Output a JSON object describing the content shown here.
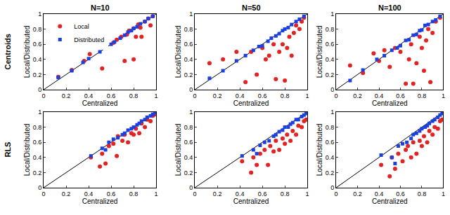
{
  "chart_data": [
    {
      "type": "scatter",
      "title": "N=10",
      "annotation": "Centroids",
      "xlabel": "Centralized",
      "ylabel": "Local/Distributed",
      "xlim": [
        0,
        1
      ],
      "ylim": [
        0,
        1
      ],
      "xticks": [
        0,
        0.2,
        0.4,
        0.6,
        0.8,
        1
      ],
      "yticks": [
        0,
        0.2,
        0.4,
        0.6,
        0.8,
        1
      ],
      "grid": false,
      "legend": "upper left",
      "series": [
        {
          "type": "line",
          "color": "#000000",
          "x": [
            0,
            1
          ],
          "values": [
            0,
            1
          ]
        },
        {
          "name": "Local",
          "color": "#e32322",
          "marker": "circle",
          "x": [
            0.13,
            0.25,
            0.36,
            0.41,
            0.52,
            0.55,
            0.62,
            0.65,
            0.69,
            0.72,
            0.74,
            0.76,
            0.8,
            0.8,
            0.82,
            0.84,
            0.86,
            0.87,
            0.9,
            0.93,
            0.95,
            0.97
          ],
          "values": [
            0.17,
            0.26,
            0.38,
            0.47,
            0.28,
            0.56,
            0.62,
            0.66,
            0.7,
            0.38,
            0.73,
            0.78,
            0.81,
            0.4,
            0.7,
            0.86,
            0.82,
            0.7,
            0.9,
            0.94,
            0.85,
            0.97
          ]
        },
        {
          "name": "Distributed",
          "color": "#1c3fe0",
          "marker": "square",
          "x": [
            0.13,
            0.25,
            0.35,
            0.4,
            0.5,
            0.55,
            0.6,
            0.63,
            0.68,
            0.72,
            0.75,
            0.78,
            0.8,
            0.83,
            0.86,
            0.9,
            0.93,
            0.97
          ],
          "values": [
            0.16,
            0.25,
            0.36,
            0.41,
            0.5,
            0.55,
            0.6,
            0.63,
            0.68,
            0.72,
            0.76,
            0.78,
            0.81,
            0.83,
            0.87,
            0.9,
            0.94,
            0.97
          ]
        }
      ]
    },
    {
      "type": "scatter",
      "title": "N=50",
      "xlabel": "Centralized",
      "ylabel": "Local/Distributed",
      "xlim": [
        0,
        1
      ],
      "ylim": [
        0,
        1
      ],
      "xticks": [
        0,
        0.2,
        0.4,
        0.6,
        0.8,
        1
      ],
      "yticks": [
        0,
        0.2,
        0.4,
        0.6,
        0.8,
        1
      ],
      "grid": false,
      "series": [
        {
          "type": "line",
          "color": "#000000",
          "x": [
            0,
            1
          ],
          "values": [
            0,
            1
          ]
        },
        {
          "name": "Local",
          "color": "#e32322",
          "marker": "circle",
          "x": [
            0.13,
            0.25,
            0.37,
            0.45,
            0.5,
            0.55,
            0.6,
            0.63,
            0.66,
            0.7,
            0.72,
            0.75,
            0.78,
            0.8,
            0.82,
            0.84,
            0.86,
            0.88,
            0.9,
            0.93,
            0.95,
            0.97
          ],
          "values": [
            0.35,
            0.4,
            0.5,
            0.1,
            0.5,
            0.2,
            0.55,
            0.4,
            0.45,
            0.6,
            0.14,
            0.5,
            0.6,
            0.12,
            0.55,
            0.7,
            0.45,
            0.75,
            0.85,
            0.8,
            0.9,
            0.95
          ]
        },
        {
          "name": "Distributed",
          "color": "#1c3fe0",
          "marker": "square",
          "x": [
            0.13,
            0.25,
            0.37,
            0.45,
            0.52,
            0.57,
            0.6,
            0.65,
            0.68,
            0.72,
            0.75,
            0.78,
            0.8,
            0.83,
            0.86,
            0.9,
            0.93,
            0.97
          ],
          "values": [
            0.15,
            0.25,
            0.38,
            0.45,
            0.52,
            0.57,
            0.58,
            0.64,
            0.68,
            0.71,
            0.74,
            0.78,
            0.8,
            0.82,
            0.86,
            0.9,
            0.93,
            0.97
          ]
        }
      ]
    },
    {
      "type": "scatter",
      "title": "N=100",
      "xlabel": "Centralized",
      "ylabel": "Local/Distributed",
      "xlim": [
        0,
        1
      ],
      "ylim": [
        0,
        1
      ],
      "xticks": [
        0,
        0.2,
        0.4,
        0.6,
        0.8,
        1
      ],
      "yticks": [
        0,
        0.2,
        0.4,
        0.6,
        0.8,
        1
      ],
      "grid": false,
      "series": [
        {
          "type": "line",
          "color": "#000000",
          "x": [
            0,
            1
          ],
          "values": [
            0,
            1
          ]
        },
        {
          "name": "Local",
          "color": "#e32322",
          "marker": "circle",
          "x": [
            0.13,
            0.25,
            0.35,
            0.4,
            0.45,
            0.5,
            0.55,
            0.6,
            0.65,
            0.68,
            0.7,
            0.72,
            0.75,
            0.78,
            0.8,
            0.82,
            0.84,
            0.86,
            0.88,
            0.9,
            0.93,
            0.97
          ],
          "values": [
            0.32,
            0.22,
            0.48,
            0.38,
            0.52,
            0.3,
            0.55,
            0.5,
            0.08,
            0.4,
            0.6,
            0.08,
            0.35,
            0.7,
            0.55,
            0.25,
            0.65,
            0.8,
            0.1,
            0.75,
            0.9,
            0.95
          ]
        },
        {
          "name": "Distributed",
          "color": "#1c3fe0",
          "marker": "square",
          "x": [
            0.13,
            0.25,
            0.38,
            0.45,
            0.52,
            0.57,
            0.6,
            0.65,
            0.68,
            0.72,
            0.75,
            0.78,
            0.8,
            0.83,
            0.86,
            0.9,
            0.93,
            0.97
          ],
          "values": [
            0.12,
            0.26,
            0.4,
            0.45,
            0.52,
            0.55,
            0.58,
            0.65,
            0.66,
            0.72,
            0.73,
            0.78,
            0.79,
            0.85,
            0.86,
            0.9,
            0.92,
            0.97
          ]
        }
      ]
    },
    {
      "type": "scatter",
      "annotation": "RLS",
      "xlabel": "Centralized",
      "ylabel": "Local/Distributed",
      "xlim": [
        0,
        1
      ],
      "ylim": [
        0,
        1
      ],
      "xticks": [
        0,
        0.2,
        0.4,
        0.6,
        0.8,
        1
      ],
      "yticks": [
        0,
        0.2,
        0.4,
        0.6,
        0.8,
        1
      ],
      "grid": false,
      "series": [
        {
          "type": "line",
          "color": "#000000",
          "x": [
            0,
            1
          ],
          "values": [
            0,
            1
          ]
        },
        {
          "name": "Local",
          "color": "#e32322",
          "marker": "circle",
          "x": [
            0.42,
            0.5,
            0.52,
            0.55,
            0.58,
            0.62,
            0.65,
            0.66,
            0.7,
            0.72,
            0.75,
            0.78,
            0.8,
            0.82,
            0.85,
            0.87,
            0.9,
            0.92,
            0.95,
            0.97,
            0.99
          ],
          "values": [
            0.4,
            0.28,
            0.45,
            0.32,
            0.55,
            0.58,
            0.42,
            0.68,
            0.62,
            0.7,
            0.6,
            0.72,
            0.7,
            0.78,
            0.72,
            0.85,
            0.8,
            0.9,
            0.88,
            0.95,
            0.97
          ]
        },
        {
          "name": "Distributed",
          "color": "#1c3fe0",
          "marker": "square",
          "x": [
            0.42,
            0.52,
            0.55,
            0.58,
            0.62,
            0.66,
            0.7,
            0.72,
            0.75,
            0.78,
            0.8,
            0.83,
            0.85,
            0.87,
            0.9,
            0.92,
            0.95,
            0.97,
            0.99
          ],
          "values": [
            0.42,
            0.52,
            0.5,
            0.6,
            0.64,
            0.66,
            0.7,
            0.72,
            0.76,
            0.78,
            0.8,
            0.83,
            0.85,
            0.88,
            0.9,
            0.93,
            0.95,
            0.97,
            0.99
          ]
        }
      ]
    },
    {
      "type": "scatter",
      "xlabel": "Centralized",
      "ylabel": "Local/Distributed",
      "xlim": [
        0,
        1
      ],
      "ylim": [
        0,
        1
      ],
      "xticks": [
        0,
        0.2,
        0.4,
        0.6,
        0.8,
        1
      ],
      "yticks": [
        0,
        0.2,
        0.4,
        0.6,
        0.8,
        1
      ],
      "grid": false,
      "series": [
        {
          "type": "line",
          "color": "#000000",
          "x": [
            0,
            1
          ],
          "values": [
            0,
            1
          ]
        },
        {
          "name": "Local",
          "color": "#e32322",
          "marker": "circle",
          "x": [
            0.42,
            0.5,
            0.52,
            0.55,
            0.58,
            0.62,
            0.65,
            0.67,
            0.7,
            0.72,
            0.75,
            0.78,
            0.8,
            0.82,
            0.85,
            0.87,
            0.9,
            0.92,
            0.95,
            0.97,
            0.99
          ],
          "values": [
            0.35,
            0.2,
            0.4,
            0.3,
            0.45,
            0.5,
            0.3,
            0.55,
            0.48,
            0.62,
            0.5,
            0.65,
            0.58,
            0.7,
            0.62,
            0.75,
            0.7,
            0.82,
            0.8,
            0.88,
            0.9
          ]
        },
        {
          "name": "Distributed",
          "color": "#1c3fe0",
          "marker": "square",
          "x": [
            0.42,
            0.52,
            0.55,
            0.58,
            0.62,
            0.66,
            0.7,
            0.72,
            0.75,
            0.78,
            0.8,
            0.83,
            0.85,
            0.87,
            0.9,
            0.92,
            0.95,
            0.97,
            0.99
          ],
          "values": [
            0.42,
            0.5,
            0.45,
            0.56,
            0.6,
            0.62,
            0.68,
            0.7,
            0.74,
            0.76,
            0.8,
            0.8,
            0.84,
            0.86,
            0.9,
            0.9,
            0.94,
            0.96,
            0.98
          ]
        }
      ]
    },
    {
      "type": "scatter",
      "xlabel": "Centralized",
      "ylabel": "Local/Distributed",
      "xlim": [
        0,
        1
      ],
      "ylim": [
        0,
        1
      ],
      "xticks": [
        0,
        0.2,
        0.4,
        0.6,
        0.8,
        1
      ],
      "yticks": [
        0,
        0.2,
        0.4,
        0.6,
        0.8,
        1
      ],
      "grid": false,
      "series": [
        {
          "type": "line",
          "color": "#000000",
          "x": [
            0,
            1
          ],
          "values": [
            0,
            1
          ]
        },
        {
          "name": "Local",
          "color": "#e32322",
          "marker": "circle",
          "x": [
            0.42,
            0.5,
            0.52,
            0.55,
            0.58,
            0.62,
            0.65,
            0.67,
            0.7,
            0.72,
            0.75,
            0.78,
            0.8,
            0.82,
            0.85,
            0.87,
            0.9,
            0.92,
            0.95,
            0.97,
            0.99
          ],
          "values": [
            0.3,
            0.15,
            0.4,
            0.25,
            0.45,
            0.35,
            0.5,
            0.55,
            0.4,
            0.6,
            0.45,
            0.62,
            0.55,
            0.68,
            0.6,
            0.75,
            0.7,
            0.8,
            0.78,
            0.88,
            0.9
          ]
        },
        {
          "name": "Distributed",
          "color": "#1c3fe0",
          "marker": "square",
          "x": [
            0.42,
            0.52,
            0.55,
            0.58,
            0.62,
            0.66,
            0.7,
            0.72,
            0.75,
            0.78,
            0.8,
            0.83,
            0.85,
            0.87,
            0.9,
            0.92,
            0.95,
            0.97,
            0.99
          ],
          "values": [
            0.43,
            0.4,
            0.32,
            0.55,
            0.58,
            0.6,
            0.65,
            0.7,
            0.72,
            0.75,
            0.78,
            0.8,
            0.82,
            0.85,
            0.88,
            0.9,
            0.93,
            0.96,
            0.98
          ]
        }
      ]
    }
  ]
}
